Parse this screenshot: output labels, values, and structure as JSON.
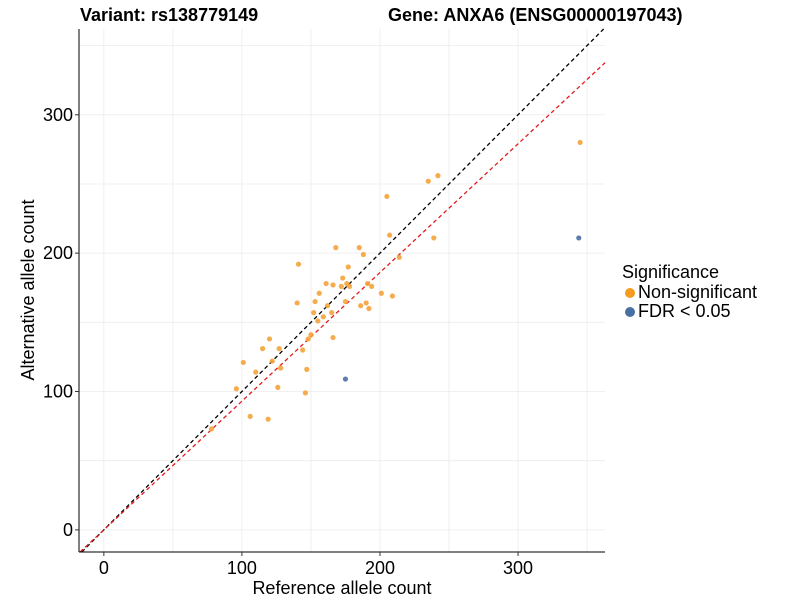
{
  "title": {
    "variant": "Variant: rs138779149",
    "gene": "Gene: ANXA6 (ENSG00000197043)"
  },
  "legend": {
    "title": "Significance",
    "items": [
      {
        "label": "Non-significant",
        "color": "#F39C1F"
      },
      {
        "label": "FDR < 0.05",
        "color": "#4A6FA5"
      }
    ]
  },
  "chart_data": {
    "type": "scatter",
    "xlabel": "Reference allele count",
    "ylabel": "Alternative allele count",
    "xlim": [
      -18,
      363
    ],
    "ylim": [
      -16,
      362
    ],
    "xticks": [
      0,
      100,
      200,
      300
    ],
    "yticks": [
      0,
      100,
      200,
      300
    ],
    "grid": true,
    "reference_lines": [
      {
        "name": "identity",
        "slope": 1.0,
        "intercept": 0,
        "color": "#000000",
        "style": "dashed"
      },
      {
        "name": "fit",
        "slope": 0.93,
        "intercept": 0,
        "color": "#E41A1C",
        "style": "dashed"
      }
    ],
    "series": [
      {
        "name": "Non-significant",
        "color": "#F5A33A",
        "points": [
          [
            78,
            73
          ],
          [
            96,
            102
          ],
          [
            101,
            121
          ],
          [
            106,
            82
          ],
          [
            110,
            114
          ],
          [
            115,
            131
          ],
          [
            119,
            80
          ],
          [
            120,
            138
          ],
          [
            122,
            122
          ],
          [
            126,
            103
          ],
          [
            127,
            131
          ],
          [
            128,
            117
          ],
          [
            140,
            164
          ],
          [
            141,
            192
          ],
          [
            144,
            130
          ],
          [
            146,
            99
          ],
          [
            147,
            116
          ],
          [
            148,
            138
          ],
          [
            150,
            141
          ],
          [
            152,
            157
          ],
          [
            153,
            165
          ],
          [
            155,
            151
          ],
          [
            156,
            171
          ],
          [
            159,
            154
          ],
          [
            161,
            178
          ],
          [
            162,
            162
          ],
          [
            165,
            157
          ],
          [
            166,
            177
          ],
          [
            166,
            139
          ],
          [
            168,
            204
          ],
          [
            172,
            176
          ],
          [
            173,
            182
          ],
          [
            175,
            165
          ],
          [
            176,
            178
          ],
          [
            177,
            190
          ],
          [
            178,
            176
          ],
          [
            185,
            204
          ],
          [
            186,
            162
          ],
          [
            188,
            199
          ],
          [
            190,
            164
          ],
          [
            191,
            178
          ],
          [
            192,
            160
          ],
          [
            194,
            176
          ],
          [
            201,
            171
          ],
          [
            205,
            241
          ],
          [
            207,
            213
          ],
          [
            209,
            169
          ],
          [
            214,
            197
          ],
          [
            235,
            252
          ],
          [
            239,
            211
          ],
          [
            242,
            256
          ],
          [
            345,
            280
          ]
        ]
      },
      {
        "name": "FDR < 0.05",
        "color": "#4A6FA5",
        "points": [
          [
            175,
            109
          ],
          [
            344,
            211
          ]
        ]
      }
    ]
  }
}
